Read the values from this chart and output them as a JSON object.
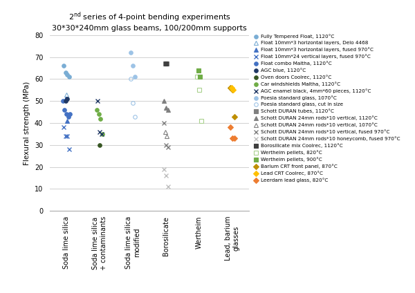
{
  "title_part1": "2",
  "title_sup": "nd",
  "title_part2": " series of 4-point bending experiments",
  "subtitle": "30*30*240mm glass beams, 100/200mm supports",
  "ylabel": "Flexural strength (MPa)",
  "ylim": [
    0,
    80
  ],
  "yticks": [
    0,
    10,
    20,
    30,
    40,
    50,
    60,
    70,
    80
  ],
  "categories": [
    "Soda lime silica",
    "Soda lime silica\n+ contaminants",
    "Soda lime silica\nmodified",
    "Borosilicate",
    "Wertheim",
    "Lead, barium\nglasses"
  ],
  "series": [
    {
      "label": "Fully Tempered Float, 1120°C",
      "marker": "o",
      "color": "#7aadd4",
      "filled": true,
      "cat_idx": 0,
      "values": [
        66,
        63,
        62,
        61
      ]
    },
    {
      "label": "Float 10mm*3 horizontal layers, Delo 4468",
      "marker": "^",
      "color": "#7aadd4",
      "filled": false,
      "cat_idx": 0,
      "values": [
        53
      ]
    },
    {
      "label": "Float 10mm*3 horizontal layers, fused 970°C",
      "marker": "^",
      "color": "#4472c4",
      "filled": true,
      "cat_idx": 0,
      "values": [
        51,
        41
      ]
    },
    {
      "label": "Float 10mm*24 vertical layers, fused 970°C",
      "marker": "x",
      "color": "#4472c4",
      "filled": true,
      "cat_idx": 0,
      "values": [
        38,
        34,
        34,
        28
      ]
    },
    {
      "label": "Float combo Maltha, 1120°C",
      "marker": "o",
      "color": "#4472c4",
      "filled": true,
      "cat_idx": 0,
      "values": [
        50,
        46,
        44,
        43,
        44
      ]
    },
    {
      "label": "AGC blue, 1120°C",
      "marker": "o",
      "color": "#203864",
      "filled": true,
      "cat_idx": 0,
      "values": [
        50,
        51
      ]
    },
    {
      "label": "Oven doors Coolrec, 1120°C",
      "marker": "o",
      "color": "#375623",
      "filled": true,
      "cat_idx": 1,
      "values": [
        30
      ]
    },
    {
      "label": "Car windshields Maltha, 1120°C",
      "marker": "o",
      "color": "#70ad47",
      "filled": true,
      "cat_idx": 1,
      "values": [
        46,
        44,
        42,
        35
      ]
    },
    {
      "label": "AGC enamel black, 4mm*60 pieces, 1120°C",
      "marker": "x",
      "color": "#203864",
      "filled": true,
      "cat_idx": 1,
      "values": [
        50,
        36,
        35
      ]
    },
    {
      "label": "Poesia standard glass, 1070°C",
      "marker": "o",
      "color": "#9dc3e6",
      "filled": true,
      "cat_idx": 2,
      "values": [
        72,
        66,
        61
      ]
    },
    {
      "label": "Poesia standard glass, cut in size",
      "marker": "o",
      "color": "#9dc3e6",
      "filled": false,
      "cat_idx": 2,
      "values": [
        60,
        49,
        43
      ]
    },
    {
      "label": "Schott DURAN tubes, 1120°C",
      "marker": "s",
      "color": "#808080",
      "filled": true,
      "cat_idx": 3,
      "values": [
        67,
        67
      ]
    },
    {
      "label": "Schott DURAN 24mm rods*10 vertical, 1120°C",
      "marker": "^",
      "color": "#808080",
      "filled": true,
      "cat_idx": 3,
      "values": [
        50,
        47,
        46
      ]
    },
    {
      "label": "Schott DURAN 24mm rods*10 vertical, 1070°C",
      "marker": "^",
      "color": "#808080",
      "filled": false,
      "cat_idx": 3,
      "values": [
        36,
        34
      ]
    },
    {
      "label": "Schott DURAN 24mm rods*10 vertical, fused 970°C",
      "marker": "x",
      "color": "#808080",
      "filled": true,
      "cat_idx": 3,
      "values": [
        40,
        30,
        29
      ]
    },
    {
      "label": "Schott DURAN 24mm rods*10 honeycomb, fused 970°C",
      "marker": "x",
      "color": "#bfbfbf",
      "filled": true,
      "cat_idx": 3,
      "values": [
        19,
        16,
        11
      ]
    },
    {
      "label": "Borosilicate mix Coolrec, 1120°C",
      "marker": "s",
      "color": "#404040",
      "filled": true,
      "cat_idx": 3,
      "values": [
        67
      ]
    },
    {
      "label": "Wertheim pellets, 820°C",
      "marker": "s",
      "color": "#a9d18e",
      "filled": false,
      "cat_idx": 4,
      "values": [
        61,
        55,
        41
      ]
    },
    {
      "label": "Wertheim pellets, 900°C",
      "marker": "s",
      "color": "#70ad47",
      "filled": true,
      "cat_idx": 4,
      "values": [
        64,
        61
      ]
    },
    {
      "label": "Barium CRT front panel, 870°C",
      "marker": "D",
      "color": "#bf8f00",
      "filled": true,
      "cat_idx": 5,
      "values": [
        56,
        55,
        43
      ]
    },
    {
      "label": "Lead CRT Coolrec, 870°C",
      "marker": "D",
      "color": "#ffc000",
      "filled": true,
      "cat_idx": 5,
      "values": [
        56,
        55
      ]
    },
    {
      "label": "Leerdam lead glass, 820°C",
      "marker": "D",
      "color": "#ed7d31",
      "filled": true,
      "cat_idx": 5,
      "values": [
        38,
        33,
        33
      ]
    }
  ],
  "background_color": "#ffffff",
  "grid_color": "#d0d0d0"
}
